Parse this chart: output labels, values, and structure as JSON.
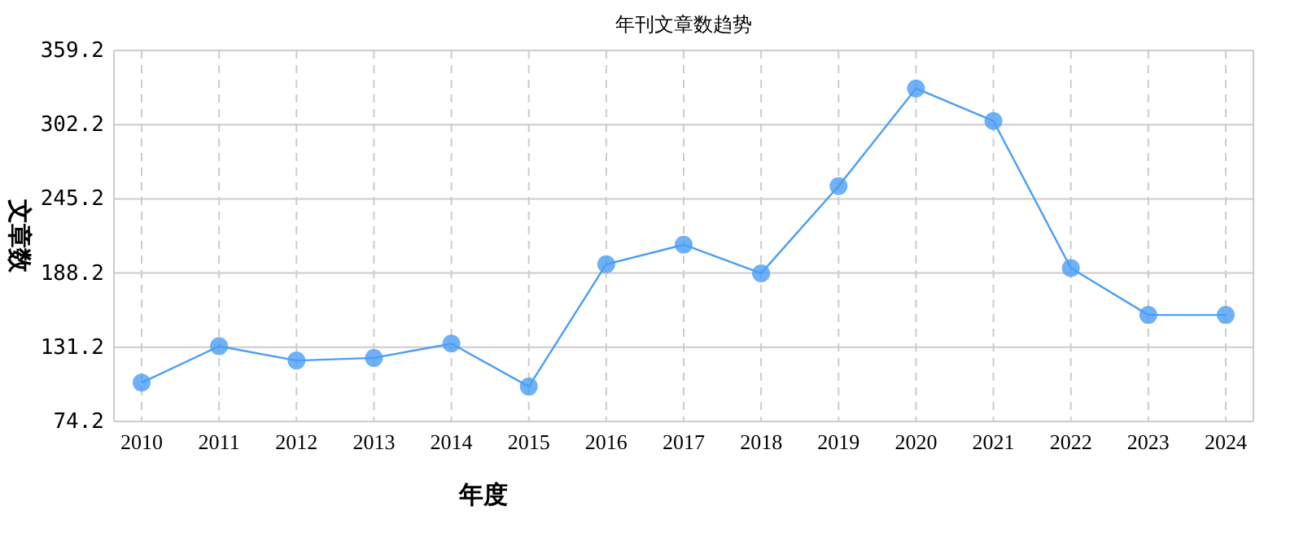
{
  "chart_data": {
    "type": "line",
    "title": "年刊文章数趋势",
    "xlabel": "年度",
    "ylabel": "文章数",
    "categories": [
      "2010",
      "2011",
      "2012",
      "2013",
      "2014",
      "2015",
      "2016",
      "2017",
      "2018",
      "2019",
      "2020",
      "2021",
      "2022",
      "2023",
      "2024"
    ],
    "series": [
      {
        "color": "#4a9ef5",
        "values": [
          104,
          132,
          121,
          123,
          134,
          101,
          195,
          210,
          188,
          255,
          330,
          305,
          192,
          156,
          156
        ]
      }
    ],
    "ylim": [
      74.2,
      359.2
    ],
    "yticks": [
      74.2,
      131.2,
      188.2,
      245.2,
      302.2,
      359.2
    ],
    "grid": true,
    "marker": "circle",
    "line_style": "solid"
  }
}
